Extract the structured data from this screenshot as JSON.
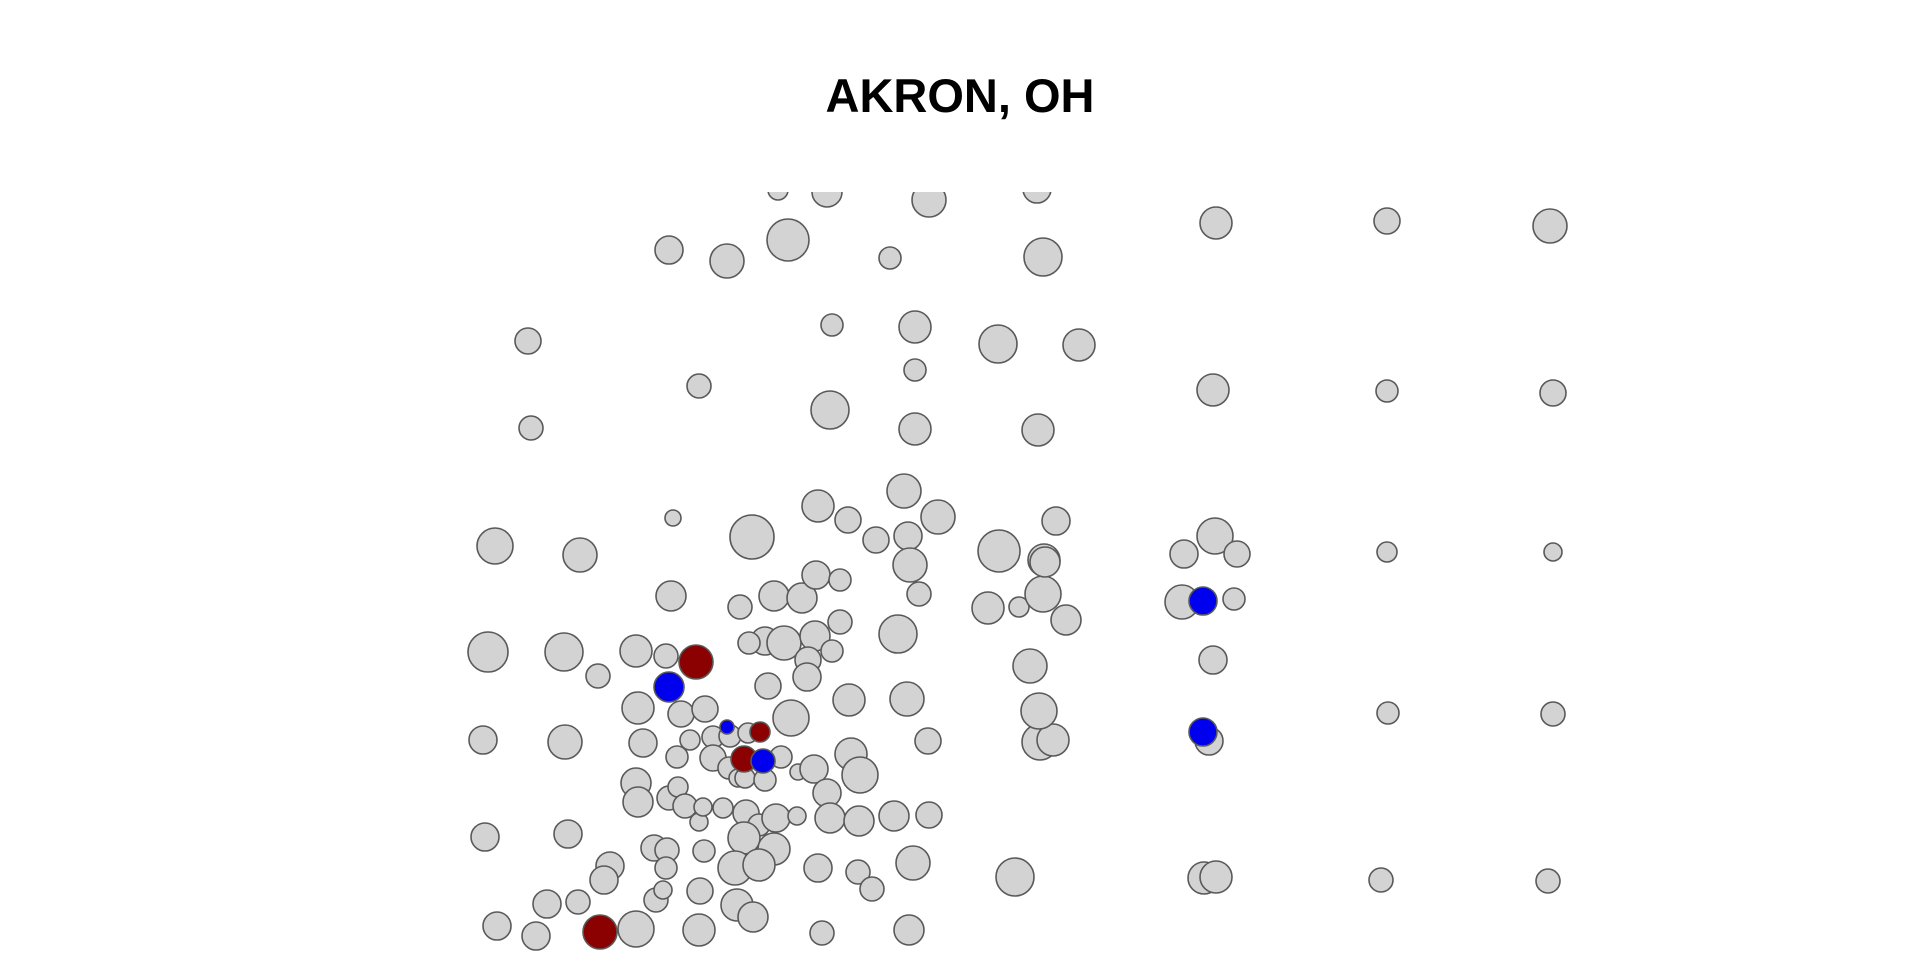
{
  "title": "AKRON, OH",
  "colors": {
    "neutral": "#d3d3d3",
    "red": "#8b0000",
    "blue": "#0000ee",
    "outline": "#595959"
  }
}
